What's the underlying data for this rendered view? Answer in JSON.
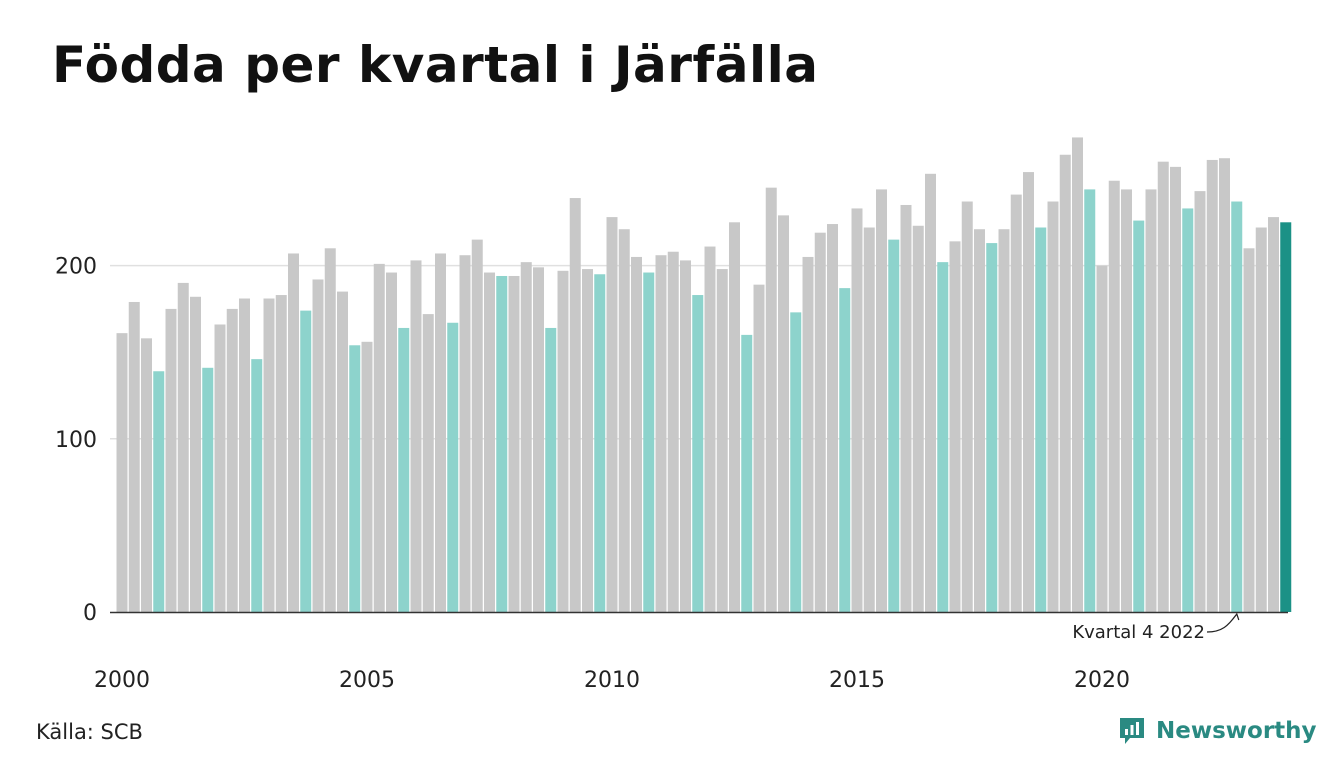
{
  "title": "Födda per kvartal i Järfälla",
  "source": "Källa: SCB",
  "brand": {
    "name": "Newsworthy",
    "icon": "newsworthy-chart-icon",
    "color": "#2a8a82"
  },
  "annotation": {
    "text": "Kvartal 4 2022"
  },
  "colors": {
    "bar": "#c8c8c8",
    "highlight": "#8dd3cc",
    "latest": "#1b9186",
    "grid": "#e0e0e0",
    "axis": "#333333"
  },
  "chart_data": {
    "type": "bar",
    "title": "Födda per kvartal i Järfälla",
    "xlabel": "",
    "ylabel": "",
    "ylim": [
      0,
      280
    ],
    "yticks": [
      0,
      100,
      200
    ],
    "xticks": [
      "2000",
      "2005",
      "2010",
      "2015",
      "2020"
    ],
    "grid": true,
    "legend": "none",
    "periods": [
      "2000 Q1",
      "2000 Q2",
      "2000 Q3",
      "2000 Q4",
      "2001 Q1",
      "2001 Q2",
      "2001 Q3",
      "2001 Q4",
      "2002 Q1",
      "2002 Q2",
      "2002 Q3",
      "2002 Q4",
      "2003 Q1",
      "2003 Q2",
      "2003 Q3",
      "2003 Q4",
      "2004 Q1",
      "2004 Q2",
      "2004 Q3",
      "2004 Q4",
      "2005 Q1",
      "2005 Q2",
      "2005 Q3",
      "2005 Q4",
      "2006 Q1",
      "2006 Q2",
      "2006 Q3",
      "2006 Q4",
      "2007 Q1",
      "2007 Q2",
      "2007 Q3",
      "2007 Q4",
      "2008 Q1",
      "2008 Q2",
      "2008 Q3",
      "2008 Q4",
      "2009 Q1",
      "2009 Q2",
      "2009 Q3",
      "2009 Q4",
      "2010 Q1",
      "2010 Q2",
      "2010 Q3",
      "2010 Q4",
      "2011 Q1",
      "2011 Q2",
      "2011 Q3",
      "2011 Q4",
      "2012 Q1",
      "2012 Q2",
      "2012 Q3",
      "2012 Q4",
      "2013 Q1",
      "2013 Q2",
      "2013 Q3",
      "2013 Q4",
      "2014 Q1",
      "2014 Q2",
      "2014 Q3",
      "2014 Q4",
      "2015 Q1",
      "2015 Q2",
      "2015 Q3",
      "2015 Q4",
      "2016 Q1",
      "2016 Q2",
      "2016 Q3",
      "2016 Q4",
      "2017 Q1",
      "2017 Q2",
      "2017 Q3",
      "2017 Q4",
      "2018 Q1",
      "2018 Q2",
      "2018 Q3",
      "2018 Q4",
      "2019 Q1",
      "2019 Q2",
      "2019 Q3",
      "2019 Q4",
      "2020 Q1",
      "2020 Q2",
      "2020 Q3",
      "2020 Q4",
      "2021 Q1",
      "2021 Q2",
      "2021 Q3",
      "2021 Q4",
      "2022 Q1",
      "2022 Q2",
      "2022 Q3",
      "2022 Q4",
      "2023 Q1",
      "2023 Q2",
      "2023 Q3",
      "2023 Q4"
    ],
    "values": [
      161,
      179,
      158,
      139,
      175,
      190,
      182,
      141,
      166,
      175,
      181,
      146,
      181,
      183,
      207,
      174,
      192,
      210,
      185,
      154,
      156,
      201,
      196,
      164,
      203,
      172,
      207,
      167,
      206,
      215,
      196,
      194,
      194,
      202,
      199,
      164,
      197,
      239,
      198,
      195,
      228,
      221,
      205,
      196,
      206,
      208,
      203,
      183,
      211,
      198,
      225,
      160,
      189,
      245,
      229,
      173,
      205,
      219,
      224,
      187,
      233,
      222,
      244,
      215,
      235,
      223,
      253,
      202,
      214,
      237,
      221,
      213,
      221,
      241,
      254,
      222,
      237,
      264,
      274,
      244,
      200,
      249,
      244,
      226,
      244,
      260,
      257,
      233,
      243,
      261,
      262,
      237,
      210,
      222,
      228,
      225
    ],
    "highlight_index": 95
  }
}
